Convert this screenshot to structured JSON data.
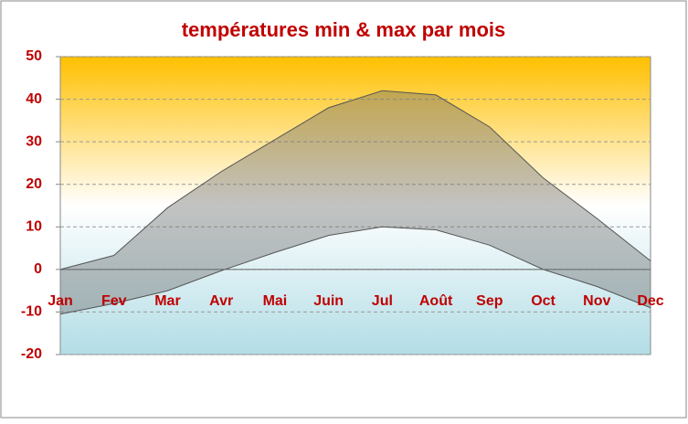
{
  "chart_data": {
    "type": "area_range",
    "title": "températures min & max par mois",
    "categories": [
      "Jan",
      "Fev",
      "Mar",
      "Avr",
      "Mai",
      "Juin",
      "Jul",
      "Août",
      "Sep",
      "Oct",
      "Nov",
      "Dec"
    ],
    "series": [
      {
        "color": "#555555",
        "values": [
          0,
          3.3,
          14.5,
          23,
          30.5,
          38,
          42,
          41,
          33.5,
          21.5,
          12,
          2
        ]
      },
      {
        "color": "#555555",
        "values": [
          -10.5,
          -8,
          -5,
          -0.3,
          4,
          8,
          10,
          9.3,
          5.7,
          0,
          -4,
          -9
        ]
      }
    ],
    "ylim": [
      -20,
      50
    ],
    "yticks": [
      -20,
      -10,
      0,
      10,
      20,
      30,
      40,
      50
    ],
    "grid": true
  }
}
